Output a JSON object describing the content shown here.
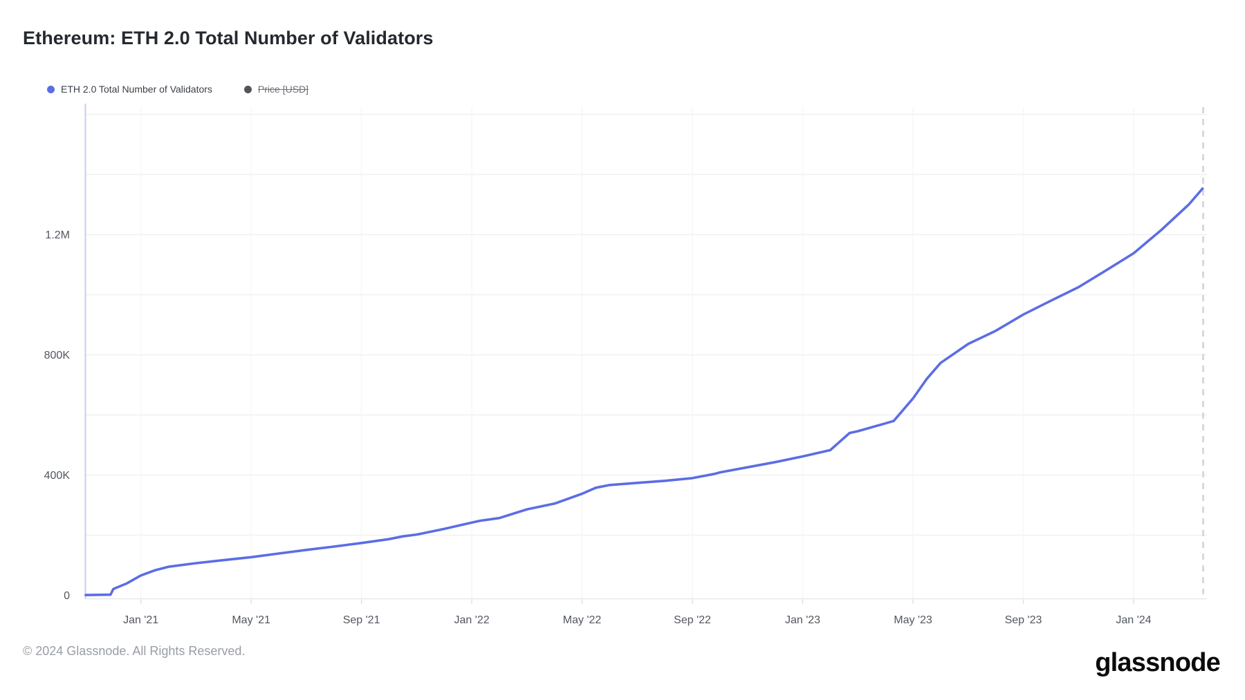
{
  "page": {
    "title": "Ethereum: ETH 2.0 Total Number of Validators"
  },
  "legend": {
    "items": [
      {
        "label": "ETH 2.0 Total Number of Validators",
        "color": "#5b6de4",
        "disabled": false
      },
      {
        "label": "Price [USD]",
        "color": "#33373d",
        "disabled": true
      }
    ]
  },
  "chart_data": {
    "type": "line",
    "title": "Ethereum: ETH 2.0 Total Number of Validators",
    "xlabel": "",
    "ylabel": "",
    "x_unit": "months_since_Nov_2020",
    "x_domain": [
      0,
      40.8
    ],
    "y_unit": "validators (thousands)",
    "y_domain_thousands": [
      0,
      1600
    ],
    "y_minor_gridline_step_thousands": 200,
    "grid": "horizontal-minor + faint-vertical-at-ticks",
    "legend_position": "top-left",
    "x_ticks": [
      {
        "m": 2,
        "label": "Jan '21"
      },
      {
        "m": 6,
        "label": "May '21"
      },
      {
        "m": 10,
        "label": "Sep '21"
      },
      {
        "m": 14,
        "label": "Jan '22"
      },
      {
        "m": 18,
        "label": "May '22"
      },
      {
        "m": 22,
        "label": "Sep '22"
      },
      {
        "m": 26,
        "label": "Jan '23"
      },
      {
        "m": 30,
        "label": "May '23"
      },
      {
        "m": 34,
        "label": "Sep '23"
      },
      {
        "m": 38,
        "label": "Jan '24"
      }
    ],
    "y_ticks": [
      {
        "v": 0,
        "label": "0"
      },
      {
        "v": 400,
        "label": "400K"
      },
      {
        "v": 800,
        "label": "800K"
      },
      {
        "v": 1200,
        "label": "1.2M"
      }
    ],
    "series": [
      {
        "name": "ETH 2.0 Total Number of Validators",
        "color": "#5b6de4",
        "points_month_valueK": [
          [
            0,
            1
          ],
          [
            0.9,
            2
          ],
          [
            1,
            21
          ],
          [
            1.5,
            40
          ],
          [
            2,
            66
          ],
          [
            2.5,
            83
          ],
          [
            3,
            95
          ],
          [
            4,
            107
          ],
          [
            5,
            117
          ],
          [
            6,
            127
          ],
          [
            7,
            139
          ],
          [
            8,
            151
          ],
          [
            9,
            162
          ],
          [
            10,
            174
          ],
          [
            11,
            187
          ],
          [
            11.5,
            196
          ],
          [
            12,
            202
          ],
          [
            13,
            221
          ],
          [
            14,
            242
          ],
          [
            14.3,
            248
          ],
          [
            15,
            257
          ],
          [
            16,
            286
          ],
          [
            17,
            305
          ],
          [
            18,
            338
          ],
          [
            18.5,
            358
          ],
          [
            19,
            367
          ],
          [
            20,
            374
          ],
          [
            21,
            381
          ],
          [
            22,
            390
          ],
          [
            22.8,
            404
          ],
          [
            23,
            409
          ],
          [
            24,
            426
          ],
          [
            25,
            443
          ],
          [
            26,
            462
          ],
          [
            27,
            483
          ],
          [
            27.7,
            540
          ],
          [
            28,
            546
          ],
          [
            29,
            572
          ],
          [
            29.3,
            580
          ],
          [
            30,
            655
          ],
          [
            30.5,
            720
          ],
          [
            31,
            773
          ],
          [
            32,
            836
          ],
          [
            33,
            880
          ],
          [
            34,
            934
          ],
          [
            35,
            980
          ],
          [
            36,
            1025
          ],
          [
            37,
            1081
          ],
          [
            38,
            1138
          ],
          [
            39,
            1215
          ],
          [
            40,
            1300
          ],
          [
            40.5,
            1353
          ]
        ],
        "start_value": 0,
        "end_value_thousands": 1353
      }
    ]
  },
  "footer": {
    "copyright": "© 2024 Glassnode. All Rights Reserved.",
    "brand": "glassnode"
  },
  "colors": {
    "accent_line": "#5b6de4",
    "left_axis_line": "#c3cdf3",
    "horizontal_gridline": "#f0f0f2",
    "vertical_gridline": "#f6f6f8",
    "right_dashed_line": "#d4d4d6",
    "bottom_border": "#e8e8ea",
    "axis_tick": "#dcdcde",
    "axis_label": "#51565e",
    "title_text": "#24292f",
    "footer_text": "#989da4",
    "background": "#ffffff"
  }
}
